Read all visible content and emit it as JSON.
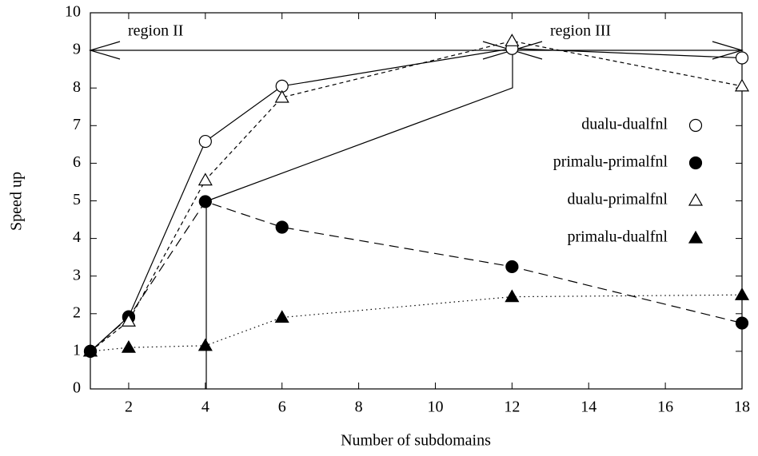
{
  "chart_data": {
    "type": "line",
    "x_label": "Number of subdomains",
    "y_label": "Speed up",
    "xlim": [
      1,
      18
    ],
    "xticks": [
      2,
      4,
      6,
      8,
      10,
      12,
      14,
      16,
      18
    ],
    "ylim": [
      0,
      10
    ],
    "yticks": [
      0,
      1,
      2,
      3,
      4,
      5,
      6,
      7,
      8,
      9,
      10
    ],
    "grid": false,
    "legend": "right",
    "annotations": [
      "region II",
      "region III"
    ],
    "series": [
      {
        "name": "dualu-dualfnl",
        "color": "#000000",
        "marker": "open-circle",
        "dash": "solid",
        "x": [
          1,
          2,
          4,
          6,
          12,
          18
        ],
        "values": [
          1,
          1.92,
          6.58,
          8.05,
          9.05,
          8.8
        ]
      },
      {
        "name": "primalu-primalfnl",
        "color": "#000000",
        "marker": "filled-circle",
        "dash": "long",
        "x": [
          1,
          2,
          4,
          6,
          12,
          18
        ],
        "values": [
          1,
          1.9,
          4.98,
          4.3,
          3.25,
          1.75
        ]
      },
      {
        "name": "dualu-primalfnl",
        "color": "#000000",
        "marker": "open-triangle",
        "dash": "short",
        "x": [
          1,
          2,
          4,
          6,
          12,
          18
        ],
        "values": [
          1,
          1.8,
          5.55,
          7.75,
          9.25,
          8.05
        ]
      },
      {
        "name": "primalu-dualfnl",
        "color": "#000000",
        "marker": "filled-triangle",
        "dash": "dotted",
        "x": [
          1,
          2,
          4,
          6,
          12,
          18
        ],
        "values": [
          1,
          1.1,
          1.15,
          1.9,
          2.45,
          2.5
        ]
      }
    ]
  }
}
